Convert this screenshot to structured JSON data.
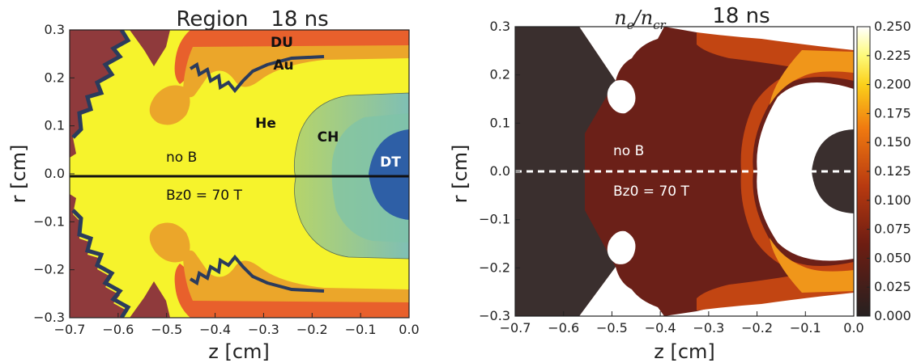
{
  "chart_data": [
    {
      "type": "heatmap",
      "title": "Region",
      "time_label": "18 ns",
      "xlabel": "z  [cm]",
      "ylabel": "r  [cm]",
      "xlim": [
        -0.7,
        0.0
      ],
      "ylim": [
        -0.3,
        0.3
      ],
      "xticks": [
        -0.7,
        -0.6,
        -0.5,
        -0.4,
        -0.3,
        -0.2,
        -0.1,
        0.0
      ],
      "yticks": [
        0.3,
        0.2,
        0.1,
        0.0,
        -0.1,
        -0.2,
        -0.3
      ],
      "regions": [
        {
          "name": "DU",
          "color": "#e8602c"
        },
        {
          "name": "Au",
          "color": "#eba62a"
        },
        {
          "name": "He",
          "color": "#f6f32c"
        },
        {
          "name": "CH",
          "color": "#8ec38a"
        },
        {
          "name": "DT",
          "color": "#2e5fa6"
        }
      ],
      "annotations": [
        "no B",
        "Bz0 = 70 T"
      ]
    },
    {
      "type": "heatmap",
      "title": "n_e/n_cr",
      "time_label": "18 ns",
      "xlabel": "z  [cm]",
      "ylabel": "r  [cm]",
      "xlim": [
        -0.7,
        0.0
      ],
      "ylim": [
        -0.3,
        0.3
      ],
      "xticks": [
        -0.7,
        -0.6,
        -0.5,
        -0.4,
        -0.3,
        -0.2,
        -0.1,
        0.0
      ],
      "yticks": [
        0.3,
        0.2,
        0.1,
        0.0,
        -0.1,
        -0.2,
        -0.3
      ],
      "colorbar": {
        "ticks": [
          0.25,
          0.225,
          0.2,
          0.175,
          0.15,
          0.125,
          0.1,
          0.075,
          0.05,
          0.025,
          0.0
        ],
        "tick_labels": [
          "0.250",
          "0.225",
          "0.200",
          "0.175",
          "0.150",
          "0.125",
          "0.100",
          "0.075",
          "0.050",
          "0.025",
          "0.000"
        ],
        "colormap": "afmhot"
      },
      "annotations": [
        "no B",
        "Bz0 = 70 T"
      ]
    }
  ]
}
